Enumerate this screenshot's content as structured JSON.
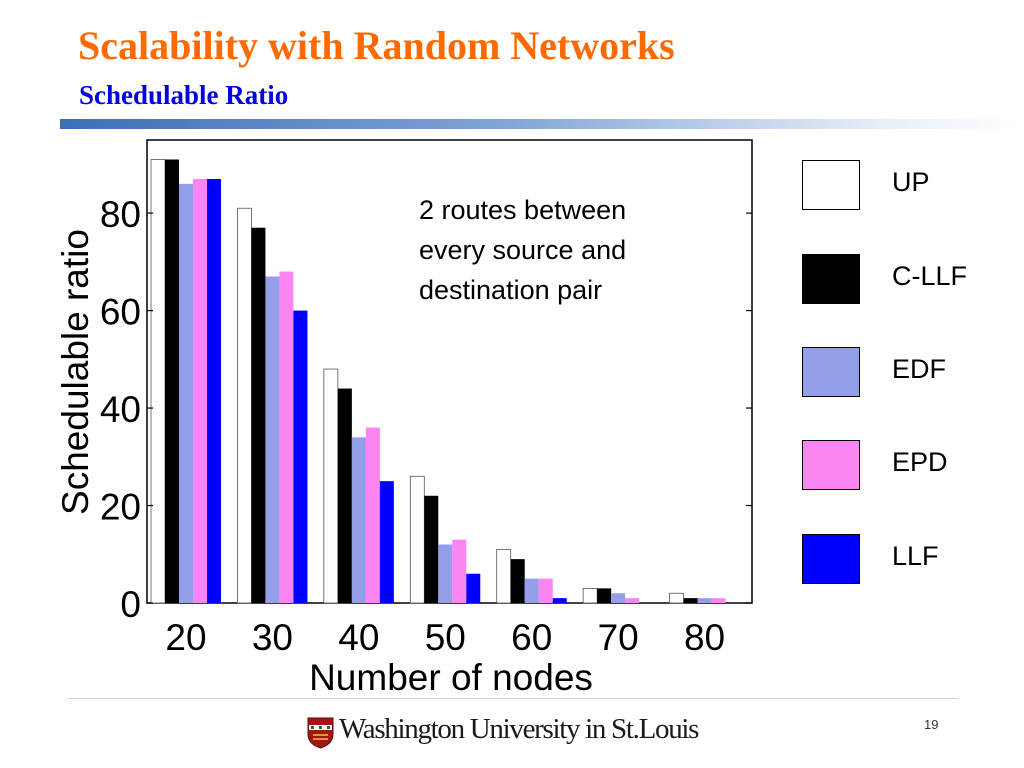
{
  "slide": {
    "title": "Scalability with Random Networks",
    "subtitle": "Schedulable Ratio",
    "annotation": "2 routes between every source and destination pair",
    "footer_logo": "Washington University in St.Louis",
    "page_number": "19"
  },
  "chart_data": {
    "type": "bar",
    "xlabel": "Number of nodes",
    "ylabel": "Schedulable ratio",
    "categories": [
      "20",
      "30",
      "40",
      "50",
      "60",
      "70",
      "80"
    ],
    "ylim": [
      0,
      95
    ],
    "yticks": [
      "0",
      "20",
      "40",
      "60",
      "80"
    ],
    "grid": false,
    "legend_position": "right",
    "series": [
      {
        "name": "UP",
        "color": "#ffffff",
        "values": [
          91,
          81,
          48,
          26,
          11,
          3,
          2
        ]
      },
      {
        "name": "C-LLF",
        "color": "#000000",
        "values": [
          91,
          77,
          44,
          22,
          9,
          3,
          1
        ]
      },
      {
        "name": "EDF",
        "color": "#949ee9",
        "values": [
          86,
          67,
          34,
          12,
          5,
          2,
          1
        ]
      },
      {
        "name": "EPD",
        "color": "#fb86f3",
        "values": [
          87,
          68,
          36,
          13,
          5,
          1,
          1
        ]
      },
      {
        "name": "LLF",
        "color": "#0000ff",
        "values": [
          87,
          60,
          25,
          6,
          1,
          0,
          0
        ]
      }
    ]
  }
}
